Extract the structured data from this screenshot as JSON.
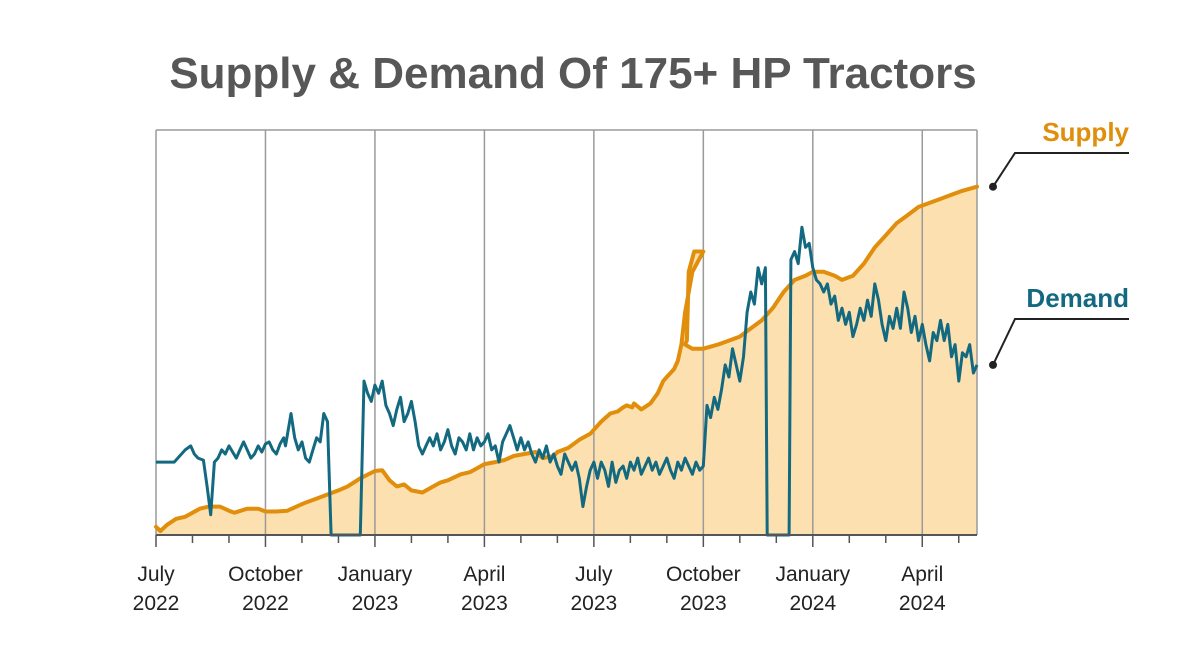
{
  "chart_data": {
    "type": "area",
    "title": "Supply & Demand Of 175+ HP Tractors",
    "xlabel": "",
    "ylabel": "",
    "ylim": [
      0,
      100
    ],
    "grid": "vertical",
    "legend": "right",
    "colors": {
      "supply_line": "#e08e0b",
      "supply_fill": "#fde0b0",
      "demand_line": "#136a80",
      "grid": "#9a9a9a",
      "title": "#575757",
      "text": "#222222"
    },
    "x_ticks": [
      {
        "x": 0,
        "line1": "July",
        "line2": "2022"
      },
      {
        "x": 3,
        "line1": "October",
        "line2": "2022"
      },
      {
        "x": 6,
        "line1": "January",
        "line2": "2023"
      },
      {
        "x": 9,
        "line1": "April",
        "line2": "2023"
      },
      {
        "x": 12,
        "line1": "July",
        "line2": "2023"
      },
      {
        "x": 15,
        "line1": "October",
        "line2": "2023"
      },
      {
        "x": 18,
        "line1": "January",
        "line2": "2024"
      },
      {
        "x": 21,
        "line1": "April",
        "line2": "2024"
      }
    ],
    "x_range": [
      0,
      22.5
    ],
    "series": [
      {
        "name": "Supply",
        "points": [
          [
            0,
            2
          ],
          [
            0.12,
            1
          ],
          [
            0.3,
            2.5
          ],
          [
            0.55,
            4
          ],
          [
            0.8,
            4.5
          ],
          [
            1,
            5.5
          ],
          [
            1.2,
            6.5
          ],
          [
            1.45,
            7
          ],
          [
            1.75,
            7
          ],
          [
            2,
            6
          ],
          [
            2.15,
            5.5
          ],
          [
            2.5,
            6.5
          ],
          [
            2.8,
            6.5
          ],
          [
            3,
            5.8
          ],
          [
            3.3,
            5.8
          ],
          [
            3.6,
            6
          ],
          [
            3.85,
            7
          ],
          [
            4.1,
            8
          ],
          [
            4.4,
            9
          ],
          [
            4.7,
            10
          ],
          [
            5,
            11
          ],
          [
            5.25,
            12
          ],
          [
            5.6,
            14
          ],
          [
            6,
            15.8
          ],
          [
            6.2,
            16
          ],
          [
            6.4,
            13.5
          ],
          [
            6.6,
            12
          ],
          [
            6.8,
            12.5
          ],
          [
            7,
            11
          ],
          [
            7.3,
            10.5
          ],
          [
            7.6,
            12
          ],
          [
            7.8,
            13
          ],
          [
            8,
            13.5
          ],
          [
            8.35,
            15
          ],
          [
            8.6,
            15.5
          ],
          [
            8.8,
            16.5
          ],
          [
            9,
            17.5
          ],
          [
            9.3,
            18
          ],
          [
            9.55,
            18.5
          ],
          [
            9.8,
            19.5
          ],
          [
            10.1,
            20
          ],
          [
            10.4,
            20.5
          ],
          [
            10.6,
            19
          ],
          [
            10.9,
            19.5
          ],
          [
            11,
            20.5
          ],
          [
            11.3,
            21.5
          ],
          [
            11.6,
            23.5
          ],
          [
            11.9,
            25
          ],
          [
            12.2,
            28
          ],
          [
            12.45,
            30
          ],
          [
            12.65,
            30.5
          ],
          [
            12.8,
            31.5
          ],
          [
            12.9,
            32
          ],
          [
            13.05,
            31.5
          ],
          [
            13.1,
            32.5
          ],
          [
            13.3,
            31
          ],
          [
            13.55,
            32.5
          ],
          [
            13.75,
            35
          ],
          [
            13.9,
            38
          ],
          [
            14,
            39
          ],
          [
            14.1,
            40
          ],
          [
            14.2,
            41
          ],
          [
            14.3,
            43
          ],
          [
            14.4,
            47
          ],
          [
            14.5,
            55
          ],
          [
            14.7,
            65
          ],
          [
            15,
            70
          ],
          [
            14.75,
            70
          ],
          [
            14.6,
            65
          ],
          [
            14.55,
            48
          ],
          [
            14.5,
            47
          ],
          [
            14.7,
            46
          ],
          [
            15,
            46
          ],
          [
            15.4,
            47
          ],
          [
            15.7,
            48
          ],
          [
            16,
            49
          ],
          [
            16.3,
            51
          ],
          [
            16.6,
            53
          ],
          [
            16.9,
            56
          ],
          [
            17.2,
            60
          ],
          [
            17.5,
            63
          ],
          [
            17.8,
            64
          ],
          [
            18,
            65
          ],
          [
            18.3,
            65
          ],
          [
            18.6,
            64
          ],
          [
            18.8,
            63
          ],
          [
            19.1,
            64
          ],
          [
            19.4,
            67
          ],
          [
            19.7,
            71
          ],
          [
            20,
            74
          ],
          [
            20.3,
            77
          ],
          [
            20.6,
            79
          ],
          [
            20.9,
            81
          ],
          [
            21.2,
            82
          ],
          [
            21.5,
            83
          ],
          [
            21.8,
            84
          ],
          [
            22.1,
            85
          ],
          [
            22.5,
            86
          ]
        ],
        "values_note": ""
      },
      {
        "name": "Demand",
        "points": [
          [
            0,
            18
          ],
          [
            0.3,
            18
          ],
          [
            0.5,
            18
          ],
          [
            0.65,
            19.5
          ],
          [
            0.8,
            21
          ],
          [
            0.95,
            22
          ],
          [
            1.05,
            20
          ],
          [
            1.15,
            19
          ],
          [
            1.3,
            18.5
          ],
          [
            1.4,
            12
          ],
          [
            1.5,
            5
          ],
          [
            1.6,
            18
          ],
          [
            1.7,
            19
          ],
          [
            1.8,
            21
          ],
          [
            1.9,
            20
          ],
          [
            2,
            22
          ],
          [
            2.1,
            20.5
          ],
          [
            2.2,
            19
          ],
          [
            2.3,
            21
          ],
          [
            2.4,
            23
          ],
          [
            2.5,
            21
          ],
          [
            2.6,
            19
          ],
          [
            2.7,
            20
          ],
          [
            2.8,
            22
          ],
          [
            2.9,
            20.5
          ],
          [
            3,
            22.5
          ],
          [
            3.1,
            23
          ],
          [
            3.2,
            21
          ],
          [
            3.3,
            20
          ],
          [
            3.4,
            22.5
          ],
          [
            3.5,
            24
          ],
          [
            3.55,
            22
          ],
          [
            3.7,
            30
          ],
          [
            3.8,
            24
          ],
          [
            3.9,
            21
          ],
          [
            4,
            23
          ],
          [
            4.1,
            19
          ],
          [
            4.2,
            18
          ],
          [
            4.3,
            21
          ],
          [
            4.4,
            24
          ],
          [
            4.5,
            23
          ],
          [
            4.6,
            30
          ],
          [
            4.7,
            28
          ],
          [
            4.8,
            0
          ],
          [
            5.2,
            0
          ],
          [
            5.5,
            0
          ],
          [
            5.6,
            0
          ],
          [
            5.7,
            38
          ],
          [
            5.8,
            35
          ],
          [
            5.9,
            33
          ],
          [
            6,
            37
          ],
          [
            6.1,
            35
          ],
          [
            6.2,
            38
          ],
          [
            6.3,
            32
          ],
          [
            6.4,
            30
          ],
          [
            6.5,
            27
          ],
          [
            6.6,
            31
          ],
          [
            6.7,
            34
          ],
          [
            6.8,
            28
          ],
          [
            6.9,
            30
          ],
          [
            7,
            33
          ],
          [
            7.1,
            28
          ],
          [
            7.2,
            22
          ],
          [
            7.3,
            20
          ],
          [
            7.4,
            22
          ],
          [
            7.5,
            24
          ],
          [
            7.6,
            22
          ],
          [
            7.7,
            25
          ],
          [
            7.8,
            21
          ],
          [
            7.9,
            23
          ],
          [
            8,
            26
          ],
          [
            8.1,
            22
          ],
          [
            8.2,
            20
          ],
          [
            8.3,
            24
          ],
          [
            8.4,
            23
          ],
          [
            8.5,
            21
          ],
          [
            8.6,
            25
          ],
          [
            8.7,
            21
          ],
          [
            8.8,
            24
          ],
          [
            8.9,
            22
          ],
          [
            9,
            23
          ],
          [
            9.1,
            25
          ],
          [
            9.2,
            21
          ],
          [
            9.3,
            22
          ],
          [
            9.4,
            18
          ],
          [
            9.5,
            23
          ],
          [
            9.6,
            25
          ],
          [
            9.7,
            27
          ],
          [
            9.8,
            24
          ],
          [
            9.9,
            21
          ],
          [
            10,
            24
          ],
          [
            10.1,
            21
          ],
          [
            10.2,
            23
          ],
          [
            10.3,
            20
          ],
          [
            10.4,
            18
          ],
          [
            10.5,
            21
          ],
          [
            10.6,
            19
          ],
          [
            10.7,
            22
          ],
          [
            10.8,
            18
          ],
          [
            10.9,
            20
          ],
          [
            11,
            17
          ],
          [
            11.1,
            15
          ],
          [
            11.2,
            20
          ],
          [
            11.3,
            18
          ],
          [
            11.4,
            16
          ],
          [
            11.5,
            18
          ],
          [
            11.6,
            14
          ],
          [
            11.7,
            7
          ],
          [
            11.8,
            12
          ],
          [
            11.9,
            16
          ],
          [
            12,
            18
          ],
          [
            12.1,
            14
          ],
          [
            12.2,
            18
          ],
          [
            12.3,
            16
          ],
          [
            12.4,
            12
          ],
          [
            12.5,
            18
          ],
          [
            12.6,
            13
          ],
          [
            12.7,
            16
          ],
          [
            12.8,
            17
          ],
          [
            12.9,
            14
          ],
          [
            13,
            18
          ],
          [
            13.1,
            16
          ],
          [
            13.2,
            19
          ],
          [
            13.3,
            15
          ],
          [
            13.4,
            17
          ],
          [
            13.5,
            19
          ],
          [
            13.6,
            16
          ],
          [
            13.7,
            18
          ],
          [
            13.8,
            15
          ],
          [
            13.9,
            17
          ],
          [
            14,
            19
          ],
          [
            14.1,
            16
          ],
          [
            14.2,
            14
          ],
          [
            14.3,
            18
          ],
          [
            14.4,
            16
          ],
          [
            14.5,
            19
          ],
          [
            14.6,
            17
          ],
          [
            14.7,
            15
          ],
          [
            14.8,
            18
          ],
          [
            14.9,
            16
          ],
          [
            15,
            17
          ],
          [
            15.1,
            32
          ],
          [
            15.2,
            29
          ],
          [
            15.3,
            34
          ],
          [
            15.4,
            31
          ],
          [
            15.5,
            36
          ],
          [
            15.6,
            42
          ],
          [
            15.7,
            39
          ],
          [
            15.8,
            46
          ],
          [
            15.9,
            42
          ],
          [
            16,
            38
          ],
          [
            16.1,
            44
          ],
          [
            16.2,
            55
          ],
          [
            16.3,
            60
          ],
          [
            16.4,
            57
          ],
          [
            16.5,
            66
          ],
          [
            16.6,
            62
          ],
          [
            16.7,
            66
          ],
          [
            16.75,
            0
          ],
          [
            17.2,
            0
          ],
          [
            17.3,
            0
          ],
          [
            17.35,
            0
          ],
          [
            17.4,
            68
          ],
          [
            17.5,
            70
          ],
          [
            17.6,
            67
          ],
          [
            17.7,
            76
          ],
          [
            17.8,
            71
          ],
          [
            17.9,
            72
          ],
          [
            18,
            66
          ],
          [
            18.1,
            63
          ],
          [
            18.2,
            62
          ],
          [
            18.3,
            60
          ],
          [
            18.4,
            62
          ],
          [
            18.5,
            57
          ],
          [
            18.6,
            59
          ],
          [
            18.7,
            53
          ],
          [
            18.8,
            56
          ],
          [
            18.9,
            52
          ],
          [
            19,
            55
          ],
          [
            19.1,
            49
          ],
          [
            19.2,
            52
          ],
          [
            19.3,
            56
          ],
          [
            19.4,
            53
          ],
          [
            19.5,
            58
          ],
          [
            19.6,
            54
          ],
          [
            19.7,
            62
          ],
          [
            19.8,
            58
          ],
          [
            19.9,
            52
          ],
          [
            20,
            48
          ],
          [
            20.1,
            54
          ],
          [
            20.2,
            51
          ],
          [
            20.3,
            56
          ],
          [
            20.4,
            51
          ],
          [
            20.5,
            60
          ],
          [
            20.6,
            56
          ],
          [
            20.7,
            50
          ],
          [
            20.8,
            54
          ],
          [
            20.9,
            48
          ],
          [
            21,
            52
          ],
          [
            21.1,
            47
          ],
          [
            21.2,
            43
          ],
          [
            21.3,
            50
          ],
          [
            21.4,
            48
          ],
          [
            21.5,
            53
          ],
          [
            21.6,
            48
          ],
          [
            21.7,
            52
          ],
          [
            21.8,
            44
          ],
          [
            21.9,
            47
          ],
          [
            22,
            38
          ],
          [
            22.1,
            45
          ],
          [
            22.2,
            44
          ],
          [
            22.3,
            47
          ],
          [
            22.4,
            40
          ],
          [
            22.5,
            42
          ]
        ]
      }
    ],
    "legend_entries": [
      {
        "name": "Supply",
        "color": "#e08e0b"
      },
      {
        "name": "Demand",
        "color": "#136a80"
      }
    ]
  }
}
